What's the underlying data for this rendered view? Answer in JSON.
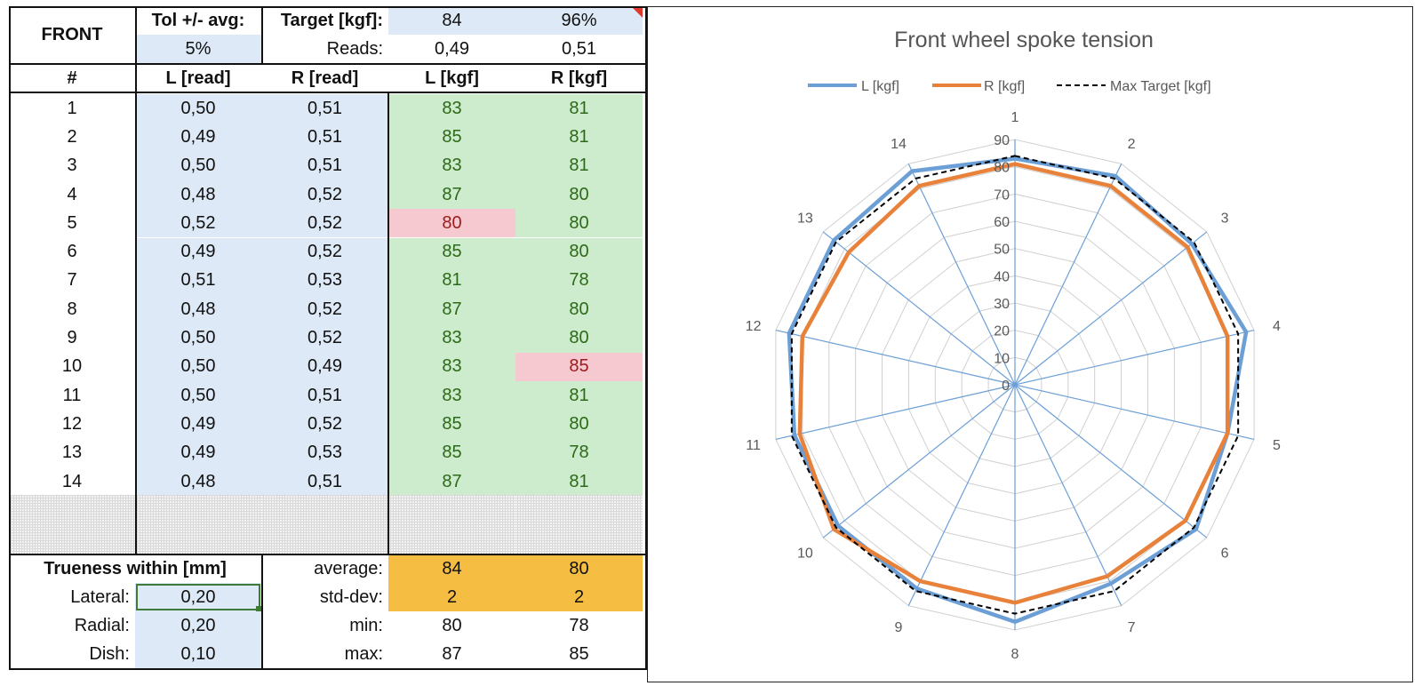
{
  "sheet": {
    "header": {
      "front_label": "FRONT",
      "tol_label": "Tol +/- avg:",
      "tol_value": "5%",
      "target_label": "Target [kgf]:",
      "target_value": "84",
      "target_pct": "96%",
      "reads_label": "Reads:",
      "reads_left": "0,49",
      "reads_right": "0,51"
    },
    "columns": [
      "#",
      "L [read]",
      "R [read]",
      "L [kgf]",
      "R [kgf]"
    ],
    "rows": [
      {
        "n": "1",
        "l_read": "0,50",
        "r_read": "0,51",
        "l_kgf": "83",
        "r_kgf": "81"
      },
      {
        "n": "2",
        "l_read": "0,49",
        "r_read": "0,51",
        "l_kgf": "85",
        "r_kgf": "81"
      },
      {
        "n": "3",
        "l_read": "0,50",
        "r_read": "0,51",
        "l_kgf": "83",
        "r_kgf": "81"
      },
      {
        "n": "4",
        "l_read": "0,48",
        "r_read": "0,52",
        "l_kgf": "87",
        "r_kgf": "80"
      },
      {
        "n": "5",
        "l_read": "0,52",
        "r_read": "0,52",
        "l_kgf": "80",
        "r_kgf": "80"
      },
      {
        "n": "6",
        "l_read": "0,49",
        "r_read": "0,52",
        "l_kgf": "85",
        "r_kgf": "80"
      },
      {
        "n": "7",
        "l_read": "0,51",
        "r_read": "0,53",
        "l_kgf": "81",
        "r_kgf": "78"
      },
      {
        "n": "8",
        "l_read": "0,48",
        "r_read": "0,52",
        "l_kgf": "87",
        "r_kgf": "80"
      },
      {
        "n": "9",
        "l_read": "0,50",
        "r_read": "0,52",
        "l_kgf": "83",
        "r_kgf": "80"
      },
      {
        "n": "10",
        "l_read": "0,50",
        "r_read": "0,49",
        "l_kgf": "83",
        "r_kgf": "85"
      },
      {
        "n": "11",
        "l_read": "0,50",
        "r_read": "0,51",
        "l_kgf": "83",
        "r_kgf": "81"
      },
      {
        "n": "12",
        "l_read": "0,49",
        "r_read": "0,52",
        "l_kgf": "85",
        "r_kgf": "80"
      },
      {
        "n": "13",
        "l_read": "0,49",
        "r_read": "0,53",
        "l_kgf": "85",
        "r_kgf": "78"
      },
      {
        "n": "14",
        "l_read": "0,48",
        "r_read": "0,51",
        "l_kgf": "87",
        "r_kgf": "81"
      }
    ],
    "flagged": {
      "l_row_index": 4,
      "r_row_index": 9
    },
    "summary": {
      "trueness_label": "Trueness within [mm]",
      "lateral_label": "Lateral:",
      "lateral_value": "0,20",
      "radial_label": "Radial:",
      "radial_value": "0,20",
      "dish_label": "Dish:",
      "dish_value": "0,10",
      "average_label": "average:",
      "average_l": "84",
      "average_r": "80",
      "stddev_label": "std-dev:",
      "stddev_l": "2",
      "stddev_r": "2",
      "min_label": "min:",
      "min_l": "80",
      "min_r": "78",
      "max_label": "max:",
      "max_l": "87",
      "max_r": "85"
    }
  },
  "chart_data": {
    "type": "radar",
    "title": "Front wheel spoke tension",
    "categories": [
      "1",
      "2",
      "3",
      "4",
      "5",
      "6",
      "7",
      "8",
      "9",
      "10",
      "11",
      "12",
      "13",
      "14"
    ],
    "series": [
      {
        "name": "L [kgf]",
        "values": [
          83,
          85,
          83,
          87,
          80,
          85,
          81,
          87,
          83,
          83,
          83,
          85,
          85,
          87
        ],
        "color": "#6c9fd6",
        "style": "solid"
      },
      {
        "name": "R [kgf]",
        "values": [
          81,
          81,
          81,
          80,
          80,
          80,
          78,
          80,
          80,
          85,
          81,
          80,
          78,
          81
        ],
        "color": "#e8823a",
        "style": "solid"
      },
      {
        "name": "Max Target [kgf]",
        "values": [
          84,
          84,
          84,
          84,
          84,
          84,
          84,
          84,
          84,
          84,
          84,
          84,
          84,
          84
        ],
        "color": "#000000",
        "style": "dashed"
      }
    ],
    "r_ticks": [
      "0",
      "10",
      "20",
      "30",
      "40",
      "50",
      "60",
      "70",
      "80",
      "90"
    ],
    "r_range": [
      0,
      90
    ],
    "legend_position": "top-center",
    "grid_color": "#d0d0d0",
    "spoke_color": "#6c9fd6"
  }
}
